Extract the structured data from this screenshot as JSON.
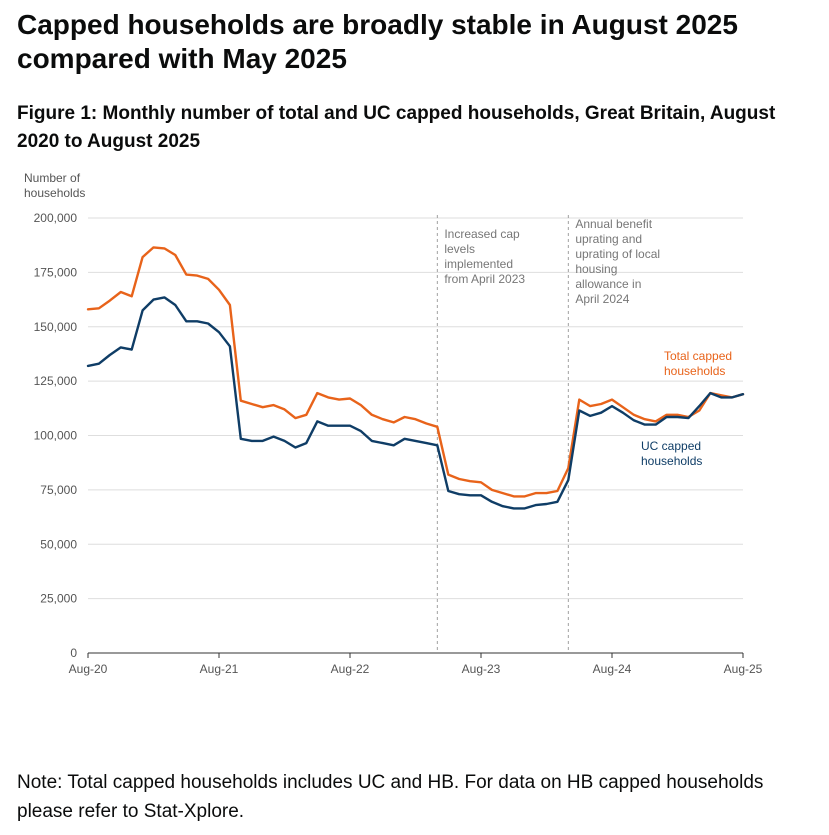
{
  "headline": "Capped households are broadly stable in August 2025 compared with May 2025",
  "figure_title": "Figure 1: Monthly number of total and UC capped households, Great Britain, August 2020 to August 2025",
  "note": "Note: Total capped households includes UC and HB. For data on HB capped households please refer to Stat-Xplore.",
  "colors": {
    "total": "#e8631a",
    "uc": "#0f3d66"
  },
  "chart_data": {
    "type": "line",
    "title": "Monthly number of total and UC capped households, Great Britain, August 2020 to August 2025",
    "xlabel": "",
    "ylabel": [
      "Number of",
      "households"
    ],
    "ylim": [
      0,
      200000
    ],
    "yticks": [
      0,
      25000,
      50000,
      75000,
      100000,
      125000,
      150000,
      175000,
      200000
    ],
    "ytick_labels": [
      "0",
      "25,000",
      "50,000",
      "75,000",
      "100,000",
      "125,000",
      "150,000",
      "175,000",
      "200,000"
    ],
    "xlim": [
      0,
      60
    ],
    "xticks": [
      0,
      12,
      24,
      36,
      48,
      60
    ],
    "xtick_labels": [
      "Aug-20",
      "Aug-21",
      "Aug-22",
      "Aug-23",
      "Aug-24",
      "Aug-25"
    ],
    "x_unit": "months since Aug 2020",
    "grid": true,
    "series": [
      {
        "name": "Total capped households",
        "label_lines": [
          "Total capped",
          "households"
        ],
        "color": "#e8631a",
        "values": [
          158000,
          158500,
          162000,
          166000,
          164000,
          182000,
          186500,
          186000,
          183000,
          174000,
          173500,
          172000,
          167000,
          160000,
          116000,
          114500,
          113000,
          114000,
          112000,
          108000,
          109500,
          119500,
          117500,
          116500,
          117000,
          114000,
          109500,
          107500,
          106000,
          108500,
          107500,
          105500,
          104000,
          82000,
          80000,
          79000,
          78500,
          75000,
          73500,
          72000,
          72000,
          73500,
          73500,
          74500,
          85000,
          116500,
          113500,
          114500,
          116500,
          113000,
          109500,
          107500,
          106500,
          109500,
          109500,
          108500,
          111500,
          119500,
          118500,
          117500,
          119000
        ]
      },
      {
        "name": "UC capped households",
        "label_lines": [
          "UC capped",
          "households"
        ],
        "color": "#0f3d66",
        "values": [
          132000,
          133000,
          137000,
          140500,
          139500,
          157500,
          162500,
          163500,
          160000,
          152500,
          152500,
          151500,
          147500,
          141000,
          98500,
          97500,
          97500,
          99500,
          97500,
          94500,
          96500,
          106500,
          104500,
          104500,
          104500,
          102000,
          97500,
          96500,
          95500,
          98500,
          97500,
          96500,
          95500,
          74500,
          73000,
          72500,
          72500,
          69500,
          67500,
          66500,
          66500,
          68000,
          68500,
          69500,
          79500,
          111500,
          109000,
          110500,
          113500,
          110500,
          107000,
          105000,
          105000,
          108500,
          108500,
          108000,
          113500,
          119500,
          117500,
          117500,
          119000
        ]
      }
    ],
    "annotations": [
      {
        "x": 32,
        "lines": [
          "Increased cap",
          "levels",
          "implemented",
          "from April 2023"
        ]
      },
      {
        "x": 44,
        "lines": [
          "Annual benefit",
          "uprating and",
          "uprating of local",
          "housing",
          "allowance in",
          "April 2024"
        ]
      }
    ]
  }
}
